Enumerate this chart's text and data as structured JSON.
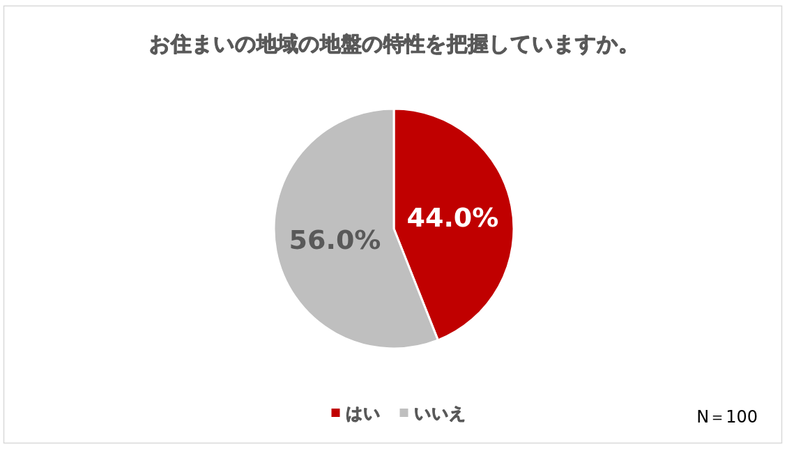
{
  "chart_data": {
    "type": "pie",
    "title": "お住まいの地域の地盤の特性を把握していますか。",
    "categories": [
      "はい",
      "いいえ"
    ],
    "values": [
      44.0,
      56.0
    ],
    "colors": [
      "#c00000",
      "#bfbfbf"
    ],
    "value_labels": [
      "44.0%",
      "56.0%"
    ],
    "legend": "bottom",
    "annotations": [
      "N＝100"
    ]
  }
}
